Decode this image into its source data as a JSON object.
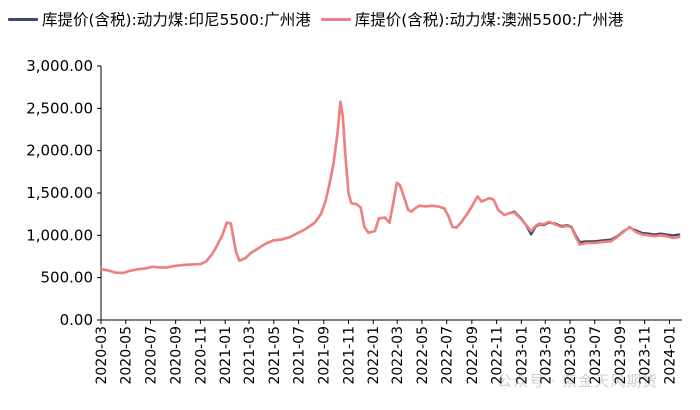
{
  "colors": {
    "series_1": "#3c4a6b",
    "series_2": "#f08080",
    "axis": "#000000"
  },
  "chart_data": {
    "type": "line",
    "title": "",
    "xlabel": "",
    "ylabel": "",
    "ylim": [
      0,
      3000
    ],
    "yticks": [
      0,
      500,
      1000,
      1500,
      2000,
      2500,
      3000
    ],
    "ytick_labels": [
      "0.00",
      "500.00",
      "1,000.00",
      "1,500.00",
      "2,000.00",
      "2,500.00",
      "3,000.00"
    ],
    "xticks": [
      "2020-03",
      "2020-05",
      "2020-07",
      "2020-09",
      "2020-11",
      "2021-01",
      "2021-03",
      "2021-05",
      "2021-07",
      "2021-09",
      "2021-11",
      "2022-01",
      "2022-03",
      "2022-05",
      "2022-07",
      "2022-09",
      "2022-11",
      "2023-01",
      "2023-03",
      "2023-05",
      "2023-07",
      "2023-09",
      "2023-11",
      "2024-01"
    ],
    "grid": false,
    "legend_position": "top",
    "series": [
      {
        "name": "库提价(含税):动力煤:印尼5500:广州港",
        "points": [
          [
            "2020-03-01",
            600
          ],
          [
            "2020-03-20",
            585
          ],
          [
            "2020-04-05",
            560
          ],
          [
            "2020-04-25",
            555
          ],
          [
            "2020-05-10",
            580
          ],
          [
            "2020-06-01",
            600
          ],
          [
            "2020-06-20",
            610
          ],
          [
            "2020-07-05",
            630
          ],
          [
            "2020-07-25",
            620
          ],
          [
            "2020-08-10",
            620
          ],
          [
            "2020-08-31",
            640
          ],
          [
            "2020-09-20",
            650
          ],
          [
            "2020-10-10",
            655
          ],
          [
            "2020-11-01",
            660
          ],
          [
            "2020-11-15",
            690
          ],
          [
            "2020-11-30",
            780
          ],
          [
            "2020-12-10",
            860
          ],
          [
            "2020-12-25",
            1000
          ],
          [
            "2021-01-05",
            1150
          ],
          [
            "2021-01-15",
            1140
          ],
          [
            "2021-01-22",
            950
          ],
          [
            "2021-01-28",
            800
          ],
          [
            "2021-02-05",
            700
          ],
          [
            "2021-02-20",
            730
          ],
          [
            "2021-03-05",
            790
          ],
          [
            "2021-03-25",
            850
          ],
          [
            "2021-04-10",
            900
          ],
          [
            "2021-04-30",
            940
          ],
          [
            "2021-05-20",
            950
          ],
          [
            "2021-06-10",
            980
          ],
          [
            "2021-06-30",
            1030
          ],
          [
            "2021-07-20",
            1080
          ],
          [
            "2021-08-10",
            1150
          ],
          [
            "2021-08-25",
            1250
          ],
          [
            "2021-09-05",
            1400
          ],
          [
            "2021-09-15",
            1600
          ],
          [
            "2021-09-25",
            1850
          ],
          [
            "2021-10-05",
            2200
          ],
          [
            "2021-10-12",
            2580
          ],
          [
            "2021-10-18",
            2400
          ],
          [
            "2021-10-25",
            1900
          ],
          [
            "2021-11-01",
            1500
          ],
          [
            "2021-11-08",
            1380
          ],
          [
            "2021-11-20",
            1370
          ],
          [
            "2021-12-01",
            1330
          ],
          [
            "2021-12-10",
            1100
          ],
          [
            "2021-12-20",
            1030
          ],
          [
            "2022-01-05",
            1050
          ],
          [
            "2022-01-15",
            1200
          ],
          [
            "2022-01-30",
            1210
          ],
          [
            "2022-02-10",
            1150
          ],
          [
            "2022-02-20",
            1400
          ],
          [
            "2022-02-28",
            1620
          ],
          [
            "2022-03-08",
            1590
          ],
          [
            "2022-03-18",
            1450
          ],
          [
            "2022-03-28",
            1300
          ],
          [
            "2022-04-05",
            1280
          ],
          [
            "2022-04-15",
            1320
          ],
          [
            "2022-04-25",
            1350
          ],
          [
            "2022-05-10",
            1340
          ],
          [
            "2022-05-25",
            1350
          ],
          [
            "2022-06-10",
            1340
          ],
          [
            "2022-06-25",
            1320
          ],
          [
            "2022-07-05",
            1230
          ],
          [
            "2022-07-15",
            1100
          ],
          [
            "2022-07-25",
            1090
          ],
          [
            "2022-08-05",
            1150
          ],
          [
            "2022-08-20",
            1250
          ],
          [
            "2022-09-01",
            1340
          ],
          [
            "2022-09-15",
            1460
          ],
          [
            "2022-09-25",
            1400
          ],
          [
            "2022-10-05",
            1420
          ],
          [
            "2022-10-15",
            1440
          ],
          [
            "2022-10-25",
            1420
          ],
          [
            "2022-11-05",
            1300
          ],
          [
            "2022-11-20",
            1240
          ],
          [
            "2022-12-01",
            1260
          ],
          [
            "2022-12-15",
            1280
          ],
          [
            "2023-01-01",
            1200
          ],
          [
            "2023-01-15",
            1100
          ],
          [
            "2023-01-25",
            1010
          ],
          [
            "2023-02-05",
            1100
          ],
          [
            "2023-02-15",
            1130
          ],
          [
            "2023-02-25",
            1120
          ],
          [
            "2023-03-10",
            1150
          ],
          [
            "2023-03-25",
            1140
          ],
          [
            "2023-04-10",
            1110
          ],
          [
            "2023-04-25",
            1120
          ],
          [
            "2023-05-05",
            1100
          ],
          [
            "2023-05-15",
            1000
          ],
          [
            "2023-05-25",
            920
          ],
          [
            "2023-06-10",
            930
          ],
          [
            "2023-06-30",
            930
          ],
          [
            "2023-07-20",
            940
          ],
          [
            "2023-08-10",
            950
          ],
          [
            "2023-08-25",
            990
          ],
          [
            "2023-09-10",
            1050
          ],
          [
            "2023-09-25",
            1090
          ],
          [
            "2023-10-10",
            1060
          ],
          [
            "2023-10-25",
            1030
          ],
          [
            "2023-11-10",
            1020
          ],
          [
            "2023-11-25",
            1010
          ],
          [
            "2023-12-10",
            1020
          ],
          [
            "2023-12-25",
            1010
          ],
          [
            "2024-01-10",
            1000
          ],
          [
            "2024-01-25",
            1010
          ]
        ]
      },
      {
        "name": "库提价(含税):动力煤:澳洲5500:广州港",
        "points": [
          [
            "2020-03-01",
            600
          ],
          [
            "2020-03-20",
            585
          ],
          [
            "2020-04-05",
            560
          ],
          [
            "2020-04-25",
            555
          ],
          [
            "2020-05-10",
            580
          ],
          [
            "2020-06-01",
            600
          ],
          [
            "2020-06-20",
            610
          ],
          [
            "2020-07-05",
            630
          ],
          [
            "2020-07-25",
            620
          ],
          [
            "2020-08-10",
            620
          ],
          [
            "2020-08-31",
            640
          ],
          [
            "2020-09-20",
            650
          ],
          [
            "2020-10-10",
            655
          ],
          [
            "2020-11-01",
            660
          ],
          [
            "2020-11-15",
            690
          ],
          [
            "2020-11-30",
            780
          ],
          [
            "2020-12-10",
            860
          ],
          [
            "2020-12-25",
            1000
          ],
          [
            "2021-01-05",
            1150
          ],
          [
            "2021-01-15",
            1140
          ],
          [
            "2021-01-22",
            950
          ],
          [
            "2021-01-28",
            800
          ],
          [
            "2021-02-05",
            700
          ],
          [
            "2021-02-20",
            730
          ],
          [
            "2021-03-05",
            790
          ],
          [
            "2021-03-25",
            850
          ],
          [
            "2021-04-10",
            900
          ],
          [
            "2021-04-30",
            940
          ],
          [
            "2021-05-20",
            950
          ],
          [
            "2021-06-10",
            980
          ],
          [
            "2021-06-30",
            1030
          ],
          [
            "2021-07-20",
            1080
          ],
          [
            "2021-08-10",
            1150
          ],
          [
            "2021-08-25",
            1250
          ],
          [
            "2021-09-05",
            1400
          ],
          [
            "2021-09-15",
            1600
          ],
          [
            "2021-09-25",
            1850
          ],
          [
            "2021-10-05",
            2200
          ],
          [
            "2021-10-12",
            2580
          ],
          [
            "2021-10-18",
            2400
          ],
          [
            "2021-10-25",
            1900
          ],
          [
            "2021-11-01",
            1500
          ],
          [
            "2021-11-08",
            1380
          ],
          [
            "2021-11-20",
            1370
          ],
          [
            "2021-12-01",
            1330
          ],
          [
            "2021-12-10",
            1100
          ],
          [
            "2021-12-20",
            1030
          ],
          [
            "2022-01-05",
            1050
          ],
          [
            "2022-01-15",
            1200
          ],
          [
            "2022-01-30",
            1210
          ],
          [
            "2022-02-10",
            1150
          ],
          [
            "2022-02-20",
            1400
          ],
          [
            "2022-02-28",
            1620
          ],
          [
            "2022-03-08",
            1590
          ],
          [
            "2022-03-18",
            1450
          ],
          [
            "2022-03-28",
            1300
          ],
          [
            "2022-04-05",
            1280
          ],
          [
            "2022-04-15",
            1320
          ],
          [
            "2022-04-25",
            1350
          ],
          [
            "2022-05-10",
            1340
          ],
          [
            "2022-05-25",
            1350
          ],
          [
            "2022-06-10",
            1340
          ],
          [
            "2022-06-25",
            1320
          ],
          [
            "2022-07-05",
            1230
          ],
          [
            "2022-07-15",
            1100
          ],
          [
            "2022-07-25",
            1090
          ],
          [
            "2022-08-05",
            1150
          ],
          [
            "2022-08-20",
            1250
          ],
          [
            "2022-09-01",
            1340
          ],
          [
            "2022-09-15",
            1460
          ],
          [
            "2022-09-25",
            1400
          ],
          [
            "2022-10-05",
            1420
          ],
          [
            "2022-10-15",
            1440
          ],
          [
            "2022-10-25",
            1420
          ],
          [
            "2022-11-05",
            1300
          ],
          [
            "2022-11-20",
            1240
          ],
          [
            "2022-12-01",
            1260
          ],
          [
            "2022-12-15",
            1270
          ],
          [
            "2023-01-01",
            1190
          ],
          [
            "2023-01-15",
            1110
          ],
          [
            "2023-01-25",
            1050
          ],
          [
            "2023-02-05",
            1110
          ],
          [
            "2023-02-15",
            1140
          ],
          [
            "2023-02-25",
            1130
          ],
          [
            "2023-03-10",
            1160
          ],
          [
            "2023-03-25",
            1130
          ],
          [
            "2023-04-10",
            1100
          ],
          [
            "2023-04-25",
            1110
          ],
          [
            "2023-05-05",
            1090
          ],
          [
            "2023-05-15",
            980
          ],
          [
            "2023-05-25",
            890
          ],
          [
            "2023-06-10",
            910
          ],
          [
            "2023-06-30",
            910
          ],
          [
            "2023-07-20",
            920
          ],
          [
            "2023-08-10",
            930
          ],
          [
            "2023-08-25",
            980
          ],
          [
            "2023-09-10",
            1040
          ],
          [
            "2023-09-25",
            1100
          ],
          [
            "2023-10-10",
            1040
          ],
          [
            "2023-10-25",
            1010
          ],
          [
            "2023-11-10",
            1000
          ],
          [
            "2023-11-25",
            990
          ],
          [
            "2023-12-10",
            1000
          ],
          [
            "2023-12-25",
            990
          ],
          [
            "2024-01-10",
            970
          ],
          [
            "2024-01-25",
            980
          ]
        ]
      }
    ]
  },
  "watermark": "公众号 · 紫金天风期货"
}
